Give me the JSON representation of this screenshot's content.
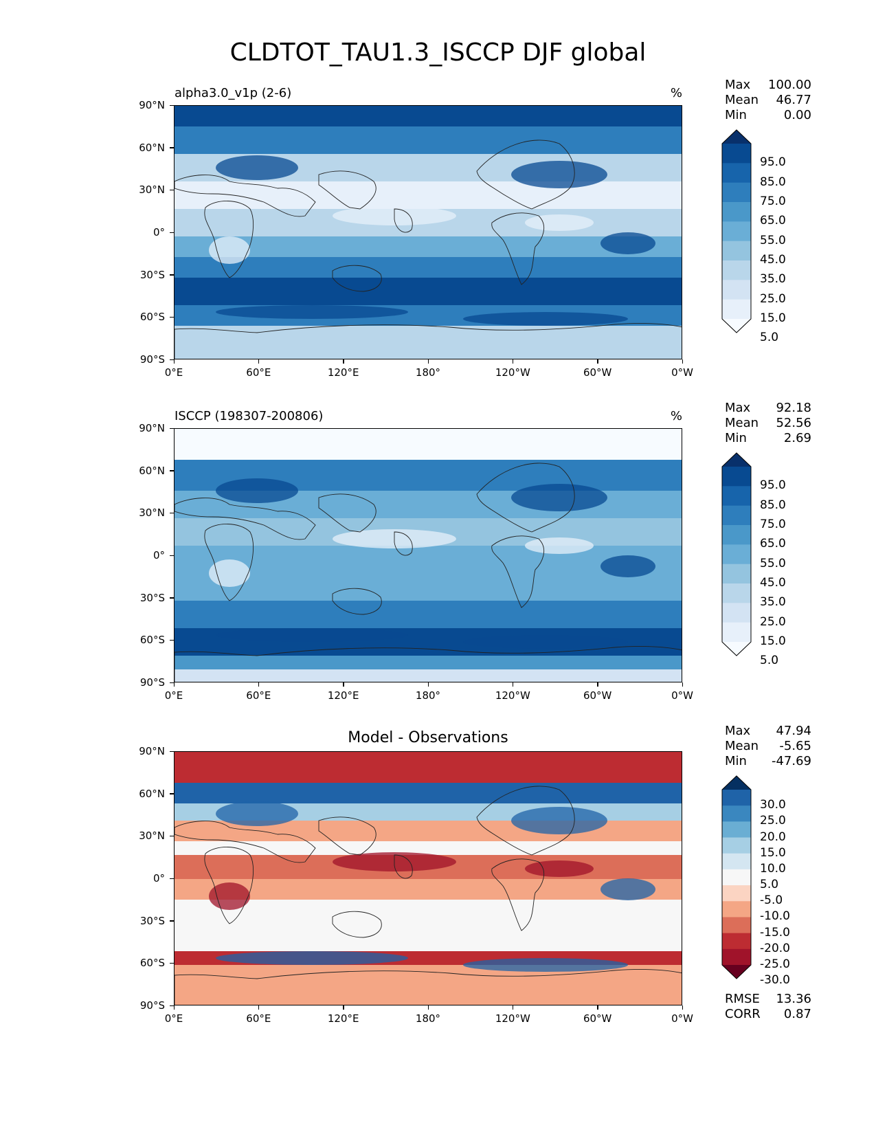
{
  "title": "CLDTOT_TAU1.3_ISCCP DJF global",
  "lat_ticks": [
    "90°N",
    "60°N",
    "30°N",
    "0°",
    "30°S",
    "60°S",
    "90°S"
  ],
  "lon_ticks": [
    "0°E",
    "60°E",
    "120°E",
    "180°",
    "120°W",
    "60°W",
    "0°W"
  ],
  "panels": [
    {
      "id": "model",
      "title_left": "alpha3.0_v1p (2-6)",
      "title_center": "",
      "units": "%",
      "stats": [
        {
          "label": "Max",
          "value": "100.00"
        },
        {
          "label": "Mean",
          "value": "46.77"
        },
        {
          "label": "Min",
          "value": "0.00"
        }
      ],
      "colorbar": {
        "labels": [
          "95.0",
          "85.0",
          "75.0",
          "65.0",
          "55.0",
          "45.0",
          "35.0",
          "25.0",
          "15.0",
          "5.0"
        ],
        "colors": [
          "#08306b",
          "#084a91",
          "#1764ab",
          "#2e7ebc",
          "#4a98c9",
          "#6aaed6",
          "#94c4df",
          "#b9d6ea",
          "#d3e3f3",
          "#e7f0fa",
          "#f7fbff"
        ]
      },
      "footer": []
    },
    {
      "id": "obs",
      "title_left": "ISCCP (198307-200806)",
      "title_center": "",
      "units": "%",
      "stats": [
        {
          "label": "Max",
          "value": "92.18"
        },
        {
          "label": "Mean",
          "value": "52.56"
        },
        {
          "label": "Min",
          "value": "2.69"
        }
      ],
      "colorbar": {
        "labels": [
          "95.0",
          "85.0",
          "75.0",
          "65.0",
          "55.0",
          "45.0",
          "35.0",
          "25.0",
          "15.0",
          "5.0"
        ],
        "colors": [
          "#08306b",
          "#084a91",
          "#1764ab",
          "#2e7ebc",
          "#4a98c9",
          "#6aaed6",
          "#94c4df",
          "#b9d6ea",
          "#d3e3f3",
          "#e7f0fa",
          "#f7fbff"
        ]
      },
      "footer": []
    },
    {
      "id": "diff",
      "title_left": "",
      "title_center": "Model - Observations",
      "units": "",
      "stats": [
        {
          "label": "Max",
          "value": "47.94"
        },
        {
          "label": "Mean",
          "value": "-5.65"
        },
        {
          "label": "Min",
          "value": "-47.69"
        }
      ],
      "colorbar": {
        "labels": [
          "30.0",
          "25.0",
          "20.0",
          "15.0",
          "10.0",
          "5.0",
          "-5.0",
          "-10.0",
          "-15.0",
          "-20.0",
          "-25.0",
          "-30.0"
        ],
        "colors": [
          "#053061",
          "#1f63a8",
          "#3a87bf",
          "#6aaed3",
          "#a6cfe4",
          "#d4e6f1",
          "#f7f7f7",
          "#fbd4c2",
          "#f4a685",
          "#dc6e59",
          "#bd2c32",
          "#a0132a",
          "#67001f"
        ]
      },
      "footer": [
        {
          "label": "RMSE",
          "value": "13.36"
        },
        {
          "label": "CORR",
          "value": "0.87"
        }
      ]
    }
  ]
}
